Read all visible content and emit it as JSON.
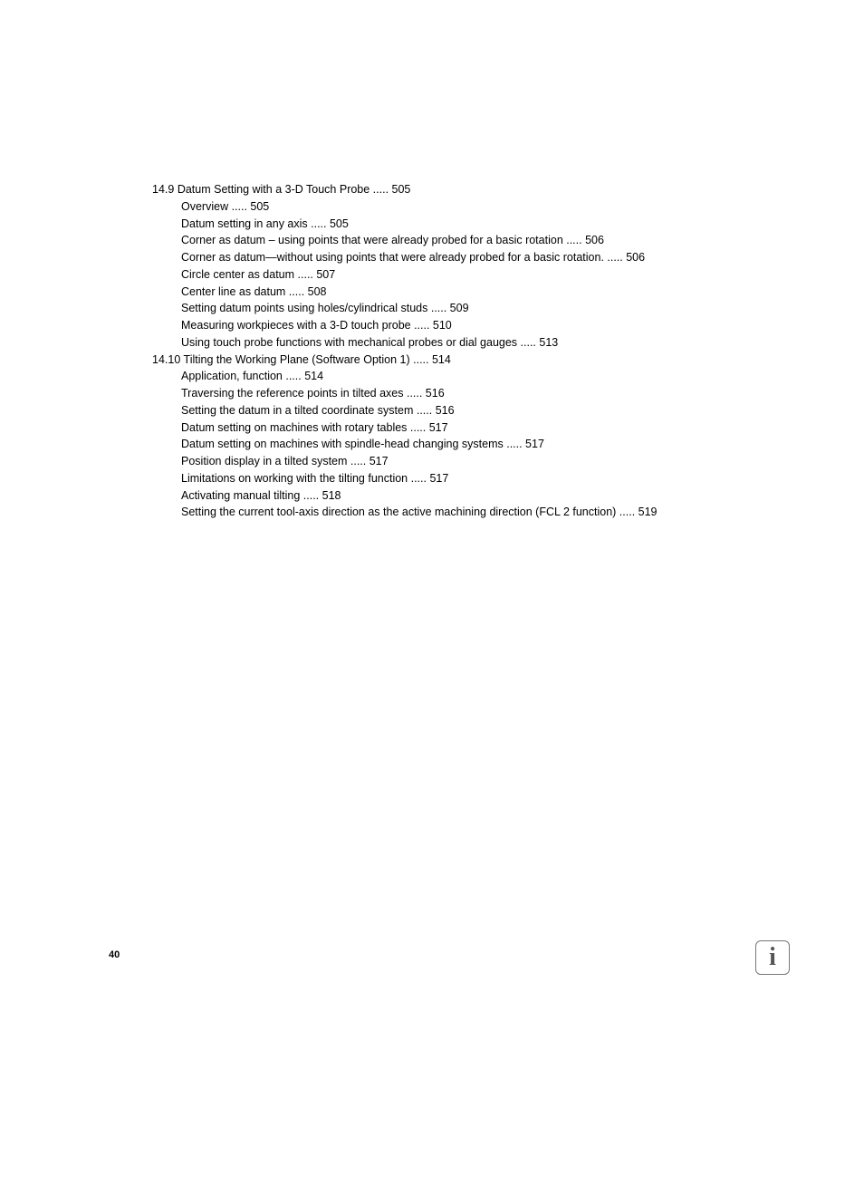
{
  "textColor": "#000000",
  "backgroundColor": "#ffffff",
  "fontSize": 12.5,
  "lineHeight": 1.5,
  "pageNumber": "40",
  "sections": [
    {
      "number": "14.9",
      "title": "Datum Setting with a 3-D Touch Probe ..... 505",
      "items": [
        "Overview ..... 505",
        "Datum setting in any axis ..... 505",
        "Corner as datum – using points that were already probed for a basic rotation ..... 506",
        "Corner as datum—without using points that were already probed for a basic rotation. ..... 506",
        "Circle center as datum ..... 507",
        "Center line as datum ..... 508",
        "Setting datum points using holes/cylindrical studs ..... 509",
        "Measuring workpieces with a 3-D touch probe ..... 510",
        "Using touch probe functions with mechanical probes or dial gauges ..... 513"
      ]
    },
    {
      "number": "14.10",
      "title": "Tilting the Working Plane (Software Option 1) ..... 514",
      "items": [
        "Application, function ..... 514",
        "Traversing the reference points in tilted axes ..... 516",
        "Setting the datum in a tilted coordinate system ..... 516",
        "Datum setting on machines with rotary tables ..... 517",
        "Datum setting on machines with spindle-head changing systems ..... 517",
        "Position display in a tilted system ..... 517",
        "Limitations on working with the tilting function  ..... 517",
        "Activating manual tilting ..... 518",
        "Setting the current tool-axis direction as the active machining direction (FCL 2 function) ..... 519"
      ]
    }
  ]
}
